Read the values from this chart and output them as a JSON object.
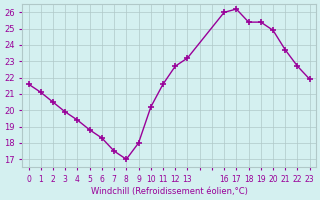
{
  "x": [
    0,
    1,
    2,
    3,
    4,
    5,
    6,
    7,
    8,
    9,
    10,
    11,
    12,
    13,
    16,
    17,
    18,
    19,
    20,
    21,
    22,
    23
  ],
  "y": [
    21.6,
    21.1,
    20.5,
    19.9,
    19.4,
    18.8,
    18.3,
    17.5,
    17.0,
    18.0,
    20.2,
    21.6,
    22.7,
    23.2,
    26.0,
    26.2,
    25.4,
    25.4,
    24.9,
    23.7,
    22.7,
    21.9
  ],
  "all_xticks": [
    0,
    1,
    2,
    3,
    4,
    5,
    6,
    7,
    8,
    9,
    10,
    11,
    12,
    13,
    14,
    15,
    16,
    17,
    18,
    19,
    20,
    21,
    22,
    23
  ],
  "xtick_labels": [
    "0",
    "1",
    "2",
    "3",
    "4",
    "5",
    "6",
    "7",
    "8",
    "9",
    "10",
    "11",
    "12",
    "13",
    "",
    "",
    "16",
    "17",
    "18",
    "19",
    "20",
    "21",
    "22",
    "23"
  ],
  "xlim": [
    -0.5,
    23.5
  ],
  "ylim": [
    16.5,
    26.5
  ],
  "yticks": [
    17,
    18,
    19,
    20,
    21,
    22,
    23,
    24,
    25,
    26
  ],
  "xlabel": "Windchill (Refroidissement éolien,°C)",
  "line_color": "#990099",
  "marker": "+",
  "bg_color": "#d4f0f0",
  "grid_color": "#b0c8c8",
  "tick_color": "#990099"
}
